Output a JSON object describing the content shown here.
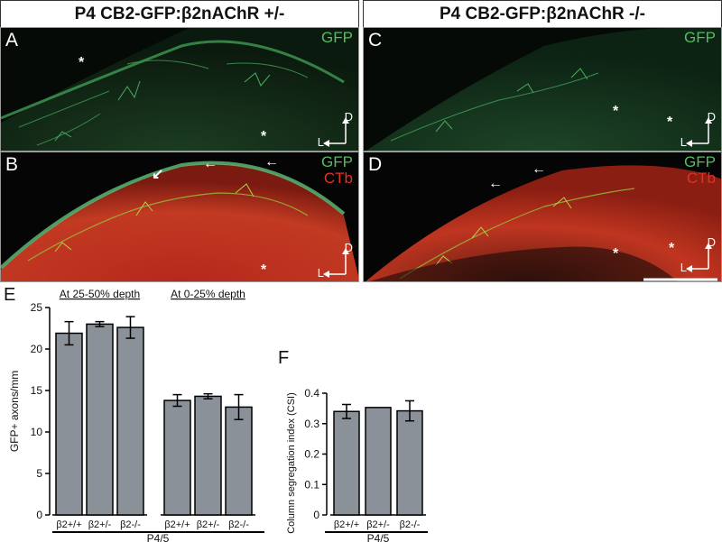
{
  "headers": {
    "left": "P4 CB2-GFP:β2nAChR +/-",
    "right": "P4 CB2-GFP:β2nAChR -/-"
  },
  "panels": {
    "A": {
      "label": "A",
      "channels": [
        "GFP"
      ],
      "marker": "*"
    },
    "B": {
      "label": "B",
      "channels": [
        "GFP",
        "CTb"
      ],
      "marker": "*"
    },
    "C": {
      "label": "C",
      "channels": [
        "GFP"
      ],
      "marker": "*"
    },
    "D": {
      "label": "D",
      "channels": [
        "GFP",
        "CTb"
      ],
      "marker": "*"
    }
  },
  "orientation": {
    "dorsal": "D",
    "lateral": "L"
  },
  "graph_labels": {
    "E": "E",
    "F": "F"
  },
  "colors": {
    "gfp": "#4fbf60",
    "ctb": "#e2302a",
    "bar": "#8a9198"
  },
  "chart_data": [
    {
      "type": "bar",
      "panel": "E",
      "ylabel": "GFP+ axons/mm",
      "ylim": [
        0,
        25
      ],
      "yticks": [
        0,
        5,
        10,
        15,
        20,
        25
      ],
      "xlabel": "P4/5",
      "groups": [
        {
          "title": "At 25-50% depth",
          "categories": [
            "β2+/+",
            "β2+/-",
            "β2-/-"
          ],
          "values": [
            21.9,
            23.0,
            22.6
          ],
          "errors": [
            1.4,
            0.3,
            1.3
          ]
        },
        {
          "title": "At 0-25% depth",
          "categories": [
            "β2+/+",
            "β2+/-",
            "β2-/-"
          ],
          "values": [
            13.8,
            14.3,
            13.0
          ],
          "errors": [
            0.7,
            0.3,
            1.5
          ]
        }
      ]
    },
    {
      "type": "bar",
      "panel": "F",
      "ylabel": "Column segregation index (CSI)",
      "ylim": [
        0,
        0.4
      ],
      "yticks": [
        "0",
        "0.1",
        "0.2",
        "0.3",
        "0.4"
      ],
      "xlabel": "P4/5",
      "categories": [
        "β2+/+",
        "β2+/-",
        "β2-/-"
      ],
      "values": [
        0.34,
        0.353,
        0.342
      ],
      "errors": [
        0.023,
        0,
        0.033
      ]
    }
  ]
}
